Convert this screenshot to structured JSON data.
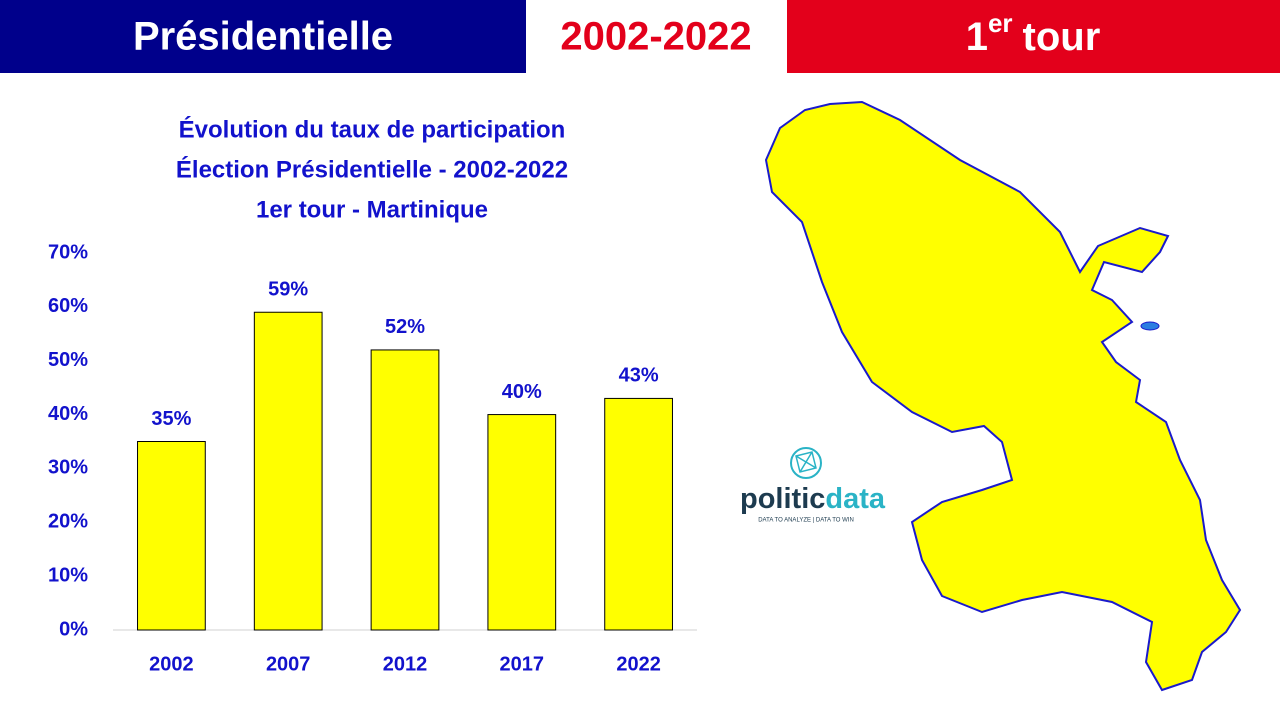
{
  "header": {
    "left": "Présidentielle",
    "middle": "2002-2022",
    "right_number": "1",
    "right_suffix": "er",
    "right_word": "tour"
  },
  "logo": {
    "name_part1": "politic",
    "name_part2": "data",
    "tagline": "DATA TO ANALYZE | DATA TO WIN"
  },
  "chart_data": {
    "type": "bar",
    "title": [
      "Évolution du taux de participation",
      "Élection Présidentielle - 2002-2022",
      "1er tour - Martinique"
    ],
    "categories": [
      "2002",
      "2007",
      "2012",
      "2017",
      "2022"
    ],
    "values": [
      35,
      59,
      52,
      40,
      43
    ],
    "value_labels": [
      "35%",
      "59%",
      "52%",
      "40%",
      "43%"
    ],
    "color": "#ffff00",
    "ylim": [
      0,
      70
    ],
    "yticks": [
      {
        "value": 0,
        "label": "0%"
      },
      {
        "value": 10,
        "label": "10%"
      },
      {
        "value": 20,
        "label": "20%"
      },
      {
        "value": 30,
        "label": "30%"
      },
      {
        "value": 40,
        "label": "40%"
      },
      {
        "value": 50,
        "label": "50%"
      },
      {
        "value": 60,
        "label": "60%"
      },
      {
        "value": 70,
        "label": "70%"
      }
    ],
    "grid": false
  }
}
